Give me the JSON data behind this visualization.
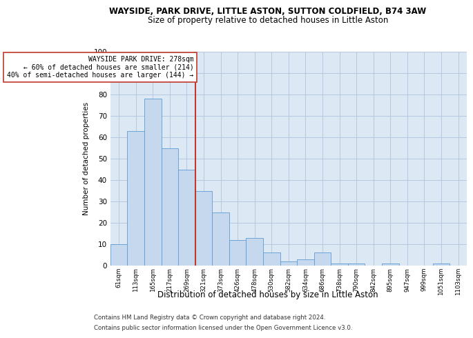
{
  "title": "WAYSIDE, PARK DRIVE, LITTLE ASTON, SUTTON COLDFIELD, B74 3AW",
  "subtitle": "Size of property relative to detached houses in Little Aston",
  "xlabel": "Distribution of detached houses by size in Little Aston",
  "ylabel": "Number of detached properties",
  "categories": [
    "61sqm",
    "113sqm",
    "165sqm",
    "217sqm",
    "269sqm",
    "321sqm",
    "373sqm",
    "426sqm",
    "478sqm",
    "530sqm",
    "582sqm",
    "634sqm",
    "686sqm",
    "738sqm",
    "790sqm",
    "842sqm",
    "895sqm",
    "947sqm",
    "999sqm",
    "1051sqm",
    "1103sqm"
  ],
  "values": [
    10,
    63,
    78,
    55,
    45,
    35,
    25,
    12,
    13,
    6,
    2,
    3,
    6,
    1,
    1,
    0,
    1,
    0,
    0,
    1,
    0
  ],
  "bar_color": "#c5d8ed",
  "bar_edge_color": "#5b9bd5",
  "reference_line_color": "#c0392b",
  "annotation_text": "WAYSIDE PARK DRIVE: 278sqm\n← 60% of detached houses are smaller (214)\n40% of semi-detached houses are larger (144) →",
  "annotation_box_color": "#ffffff",
  "annotation_box_edge": "#c0392b",
  "ylim": [
    0,
    100
  ],
  "yticks": [
    0,
    10,
    20,
    30,
    40,
    50,
    60,
    70,
    80,
    90,
    100
  ],
  "grid_color": "#b0c4de",
  "background_color": "#dde8f5",
  "footer_line1": "Contains HM Land Registry data © Crown copyright and database right 2024.",
  "footer_line2": "Contains public sector information licensed under the Open Government Licence v3.0.",
  "title_fontsize": 8.5,
  "subtitle_fontsize": 8.5,
  "ref_line_index": 4.5
}
